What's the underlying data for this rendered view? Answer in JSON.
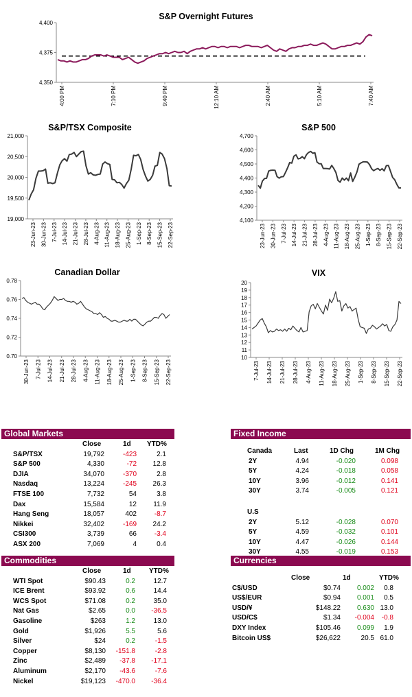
{
  "colors": {
    "accent": "#8b0a50",
    "futures_line": "#8b1a5b",
    "index_line": "#3a3a3a",
    "negative": "#e0001b",
    "positive": "#1a8c1a"
  },
  "chart_data": [
    {
      "id": "futures",
      "type": "line",
      "title": "S&P Overnight Futures",
      "y_ticks": [
        "4,400",
        "4,375",
        "4,350"
      ],
      "ylim": [
        4350,
        4400
      ],
      "x_ticks": [
        "4:00 PM",
        "7:10 PM",
        "9:40 PM",
        "12:10 AM",
        "2:40 AM",
        "5:10 AM",
        "7:40 AM"
      ],
      "reference_level": 4372,
      "values": [
        4369,
        4368,
        4368,
        4367,
        4368,
        4367,
        4367,
        4368,
        4369,
        4369,
        4370,
        4372,
        4373,
        4373,
        4373,
        4372,
        4373,
        4372,
        4371,
        4371,
        4371,
        4369,
        4370,
        4371,
        4369,
        4367,
        4366,
        4367,
        4368,
        4370,
        4371,
        4372,
        4373,
        4374,
        4374,
        4375,
        4374,
        4375,
        4376,
        4375,
        4375,
        4376,
        4374,
        4376,
        4377,
        4378,
        4378,
        4379,
        4378,
        4379,
        4380,
        4380,
        4379,
        4380,
        4380,
        4379,
        4380,
        4380,
        4380,
        4379,
        4380,
        4381,
        4381,
        4380,
        4380,
        4380,
        4379,
        4380,
        4381,
        4379,
        4377,
        4376,
        4378,
        4377,
        4376,
        4378,
        4379,
        4379,
        4380,
        4380,
        4381,
        4381,
        4382,
        4381,
        4381,
        4382,
        4383,
        4382,
        4380,
        4378,
        4378,
        4379,
        4380,
        4380,
        4381,
        4381,
        4382,
        4383,
        4382,
        4384,
        4388,
        4390,
        4389
      ]
    },
    {
      "id": "tsx",
      "type": "line",
      "title": "S&P/TSX Composite",
      "y_ticks": [
        "21,000",
        "20,500",
        "20,000",
        "19,500",
        "19,000"
      ],
      "ylim": [
        19000,
        21000
      ],
      "x_ticks": [
        "23-Jun-23",
        "30-Jun-23",
        "7-Jul-23",
        "14-Jul-23",
        "21-Jul-23",
        "28-Jul-23",
        "4-Aug-23",
        "11-Aug-23",
        "18-Aug-23",
        "25-Aug-23",
        "1-Sep-23",
        "8-Sep-23",
        "15-Sep-23",
        "22-Sep-23"
      ],
      "values": [
        19450,
        19600,
        19700,
        19980,
        20150,
        20150,
        20160,
        20200,
        19860,
        19870,
        19850,
        19870,
        20100,
        20300,
        20400,
        20450,
        20390,
        20550,
        20560,
        20600,
        20500,
        20560,
        20620,
        20630,
        20280,
        20080,
        20110,
        20060,
        20050,
        20070,
        20080,
        20320,
        20370,
        20330,
        20310,
        19950,
        19940,
        19870,
        19880,
        19830,
        19740,
        19850,
        19930,
        20200,
        20530,
        20520,
        20550,
        20430,
        20190,
        20030,
        19910,
        19950,
        20050,
        20270,
        20290,
        20600,
        20560,
        20450,
        20210,
        19800,
        19790
      ]
    },
    {
      "id": "spx",
      "type": "line",
      "title": "S&P 500",
      "y_ticks": [
        "4,700",
        "4,600",
        "4,500",
        "4,400",
        "4,300",
        "4,200",
        "4,100"
      ],
      "ylim": [
        4100,
        4700
      ],
      "x_ticks": [
        "23-Jun-23",
        "30-Jun-23",
        "7-Jul-23",
        "14-Jul-23",
        "21-Jul-23",
        "28-Jul-23",
        "4-Aug-23",
        "11-Aug-23",
        "18-Aug-23",
        "25-Aug-23",
        "1-Sep-23",
        "8-Sep-23",
        "15-Sep-23",
        "22-Sep-23"
      ],
      "values": [
        4348,
        4328,
        4378,
        4396,
        4398,
        4450,
        4455,
        4456,
        4455,
        4410,
        4399,
        4409,
        4410,
        4440,
        4472,
        4510,
        4506,
        4555,
        4565,
        4536,
        4540,
        4552,
        4537,
        4567,
        4582,
        4589,
        4576,
        4580,
        4514,
        4502,
        4501,
        4468,
        4468,
        4467,
        4464,
        4490,
        4468,
        4439,
        4383,
        4370,
        4400,
        4385,
        4400,
        4381,
        4436,
        4376,
        4406,
        4443,
        4498,
        4508,
        4515,
        4515,
        4513,
        4496,
        4466,
        4452,
        4462,
        4468,
        4455,
        4466,
        4451,
        4488,
        4490,
        4448,
        4404,
        4388,
        4355,
        4330,
        4330
      ]
    },
    {
      "id": "cad",
      "type": "line",
      "title": "Canadian Dollar",
      "y_ticks": [
        "0.78",
        "0.76",
        "0.74",
        "0.72",
        "0.70"
      ],
      "ylim": [
        0.7,
        0.78
      ],
      "x_ticks": [
        "30-Jun-23",
        "7-Jul-23",
        "14-Jul-23",
        "21-Jul-23",
        "28-Jul-23",
        "4-Aug-23",
        "11-Aug-23",
        "18-Aug-23",
        "25-Aug-23",
        "1-Sep-23",
        "8-Sep-23",
        "15-Sep-23",
        "22-Sep-23"
      ],
      "values": [
        0.761,
        0.762,
        0.759,
        0.757,
        0.756,
        0.755,
        0.756,
        0.757,
        0.755,
        0.755,
        0.753,
        0.75,
        0.749,
        0.752,
        0.754,
        0.756,
        0.759,
        0.763,
        0.761,
        0.759,
        0.76,
        0.76,
        0.761,
        0.759,
        0.758,
        0.758,
        0.757,
        0.758,
        0.757,
        0.755,
        0.756,
        0.758,
        0.755,
        0.752,
        0.75,
        0.749,
        0.748,
        0.747,
        0.745,
        0.745,
        0.744,
        0.746,
        0.744,
        0.741,
        0.742,
        0.74,
        0.739,
        0.737,
        0.737,
        0.738,
        0.737,
        0.736,
        0.736,
        0.737,
        0.738,
        0.737,
        0.737,
        0.739,
        0.737,
        0.739,
        0.739,
        0.737,
        0.735,
        0.733,
        0.732,
        0.734,
        0.736,
        0.737,
        0.737,
        0.739,
        0.741,
        0.741,
        0.74,
        0.743,
        0.745,
        0.744,
        0.74,
        0.742,
        0.744
      ]
    },
    {
      "id": "vix",
      "type": "line",
      "title": "VIX",
      "y_ticks": [
        "20",
        "19",
        "18",
        "17",
        "16",
        "15",
        "14",
        "13",
        "12",
        "11",
        "10"
      ],
      "ylim": [
        10,
        20
      ],
      "x_ticks": [
        "7-Jul-23",
        "14-Jul-23",
        "21-Jul-23",
        "28-Jul-23",
        "4-Aug-23",
        "11-Aug-23",
        "18-Aug-23",
        "25-Aug-23",
        "1-Sep-23",
        "8-Sep-23",
        "15-Sep-23",
        "22-Sep-23"
      ],
      "values": [
        13.8,
        14.0,
        14.2,
        14.6,
        15.0,
        15.2,
        14.6,
        14.1,
        13.3,
        13.6,
        13.4,
        13.5,
        13.8,
        13.6,
        13.7,
        13.5,
        13.8,
        13.5,
        13.9,
        13.7,
        14.2,
        13.9,
        13.6,
        13.4,
        14.0,
        13.4,
        13.5,
        13.6,
        16.1,
        16.9,
        17.1,
        16.5,
        17.2,
        16.7,
        16.2,
        15.8,
        17.0,
        16.3,
        17.8,
        17.3,
        17.9,
        18.8,
        17.5,
        17.6,
        16.2,
        16.9,
        17.2,
        16.6,
        16.8,
        16.2,
        16.4,
        16.6,
        15.1,
        14.1,
        14.0,
        13.9,
        13.2,
        13.8,
        13.9,
        14.3,
        14.1,
        13.8,
        14.0,
        14.2,
        14.5,
        14.2,
        14.4,
        13.6,
        13.5,
        14.1,
        14.4,
        15.0,
        17.5,
        17.2
      ]
    }
  ],
  "global_markets": {
    "title": "Global Markets",
    "headers": [
      "Close",
      "1d",
      "YTD%"
    ],
    "rows": [
      {
        "name": "S&P/TSX",
        "close": "19,792",
        "d1": "-423",
        "ytd": "2.1",
        "d1c": "neg",
        "ytdc": "blk"
      },
      {
        "name": "S&P 500",
        "close": "4,330",
        "d1": "-72",
        "ytd": "12.8",
        "d1c": "neg",
        "ytdc": "blk"
      },
      {
        "name": "DJIA",
        "close": "34,070",
        "d1": "-370",
        "ytd": "2.8",
        "d1c": "neg",
        "ytdc": "blk"
      },
      {
        "name": "Nasdaq",
        "close": "13,224",
        "d1": "-245",
        "ytd": "26.3",
        "d1c": "neg",
        "ytdc": "blk"
      },
      {
        "name": "FTSE 100",
        "close": "7,732",
        "d1": "54",
        "ytd": "3.8",
        "d1c": "blk",
        "ytdc": "blk"
      },
      {
        "name": "Dax",
        "close": "15,584",
        "d1": "12",
        "ytd": "11.9",
        "d1c": "blk",
        "ytdc": "blk"
      },
      {
        "name": "Hang Seng",
        "close": "18,057",
        "d1": "402",
        "ytd": "-8.7",
        "d1c": "blk",
        "ytdc": "neg"
      },
      {
        "name": "Nikkei",
        "close": "32,402",
        "d1": "-169",
        "ytd": "24.2",
        "d1c": "neg",
        "ytdc": "blk"
      },
      {
        "name": "CSI300",
        "close": "3,739",
        "d1": "66",
        "ytd": "-3.4",
        "d1c": "blk",
        "ytdc": "neg"
      },
      {
        "name": "ASX 200",
        "close": "7,069",
        "d1": "4",
        "ytd": "0.4",
        "d1c": "blk",
        "ytdc": "blk"
      }
    ]
  },
  "fixed_income": {
    "title": "Fixed Income",
    "headers": [
      "Last",
      "1D Chg",
      "1M Chg"
    ],
    "canada_label": "Canada",
    "us_label": "U.S",
    "canada": [
      {
        "term": "2Y",
        "last": "4.94",
        "d1": "-0.020",
        "m1": "0.098"
      },
      {
        "term": "5Y",
        "last": "4.24",
        "d1": "-0.018",
        "m1": "0.058"
      },
      {
        "term": "10Y",
        "last": "3.96",
        "d1": "-0.012",
        "m1": "0.141"
      },
      {
        "term": "30Y",
        "last": "3.74",
        "d1": "-0.005",
        "m1": "0.121"
      }
    ],
    "us": [
      {
        "term": "2Y",
        "last": "5.12",
        "d1": "-0.028",
        "m1": "0.070"
      },
      {
        "term": "5Y",
        "last": "4.59",
        "d1": "-0.032",
        "m1": "0.101"
      },
      {
        "term": "10Y",
        "last": "4.47",
        "d1": "-0.026",
        "m1": "0.144"
      },
      {
        "term": "30Y",
        "last": "4.55",
        "d1": "-0.019",
        "m1": "0.153"
      }
    ]
  },
  "commodities": {
    "title": "Commodities",
    "headers": [
      "Close",
      "1d",
      "YTD%"
    ],
    "rows": [
      {
        "name": "WTI Spot",
        "close": "$90.43",
        "d1": "0.2",
        "ytd": "12.7",
        "d1c": "pos",
        "ytdc": "blk"
      },
      {
        "name": "ICE Brent",
        "close": "$93.92",
        "d1": "0.6",
        "ytd": "14.4",
        "d1c": "pos",
        "ytdc": "blk"
      },
      {
        "name": "WCS Spot",
        "close": "$71.08",
        "d1": "0.2",
        "ytd": "35.0",
        "d1c": "pos",
        "ytdc": "blk"
      },
      {
        "name": "Nat Gas",
        "close": "$2.65",
        "d1": "0.0",
        "ytd": "-36.5",
        "d1c": "pos",
        "ytdc": "neg"
      },
      {
        "name": "Gasoline",
        "close": "$263",
        "d1": "1.2",
        "ytd": "13.0",
        "d1c": "pos",
        "ytdc": "blk"
      },
      {
        "name": "Gold",
        "close": "$1,926",
        "d1": "5.5",
        "ytd": "5.6",
        "d1c": "pos",
        "ytdc": "blk"
      },
      {
        "name": "Silver",
        "close": "$24",
        "d1": "0.2",
        "ytd": "-1.5",
        "d1c": "pos",
        "ytdc": "neg"
      },
      {
        "name": "Copper",
        "close": "$8,130",
        "d1": "-151.8",
        "ytd": "-2.8",
        "d1c": "neg",
        "ytdc": "neg"
      },
      {
        "name": "Zinc",
        "close": "$2,489",
        "d1": "-37.8",
        "ytd": "-17.1",
        "d1c": "neg",
        "ytdc": "neg"
      },
      {
        "name": "Aluminum",
        "close": "$2,170",
        "d1": "-43.6",
        "ytd": "-7.6",
        "d1c": "neg",
        "ytdc": "neg"
      },
      {
        "name": "Nickel",
        "close": "$19,123",
        "d1": "-470.0",
        "ytd": "-36.4",
        "d1c": "neg",
        "ytdc": "neg"
      }
    ]
  },
  "currencies": {
    "title": "Currencies",
    "headers": [
      "Close",
      "1d",
      "YTD%"
    ],
    "rows": [
      {
        "name": "C$/USD",
        "close": "$0.74",
        "d1": "0.002",
        "ytd": "0.8",
        "d1c": "pos",
        "ytdc": "blk"
      },
      {
        "name": "US$/EUR",
        "close": "$0.94",
        "d1": "0.001",
        "ytd": "0.5",
        "d1c": "pos",
        "ytdc": "blk"
      },
      {
        "name": "USD/¥",
        "close": "$148.22",
        "d1": "0.630",
        "ytd": "13.0",
        "d1c": "pos",
        "ytdc": "blk"
      },
      {
        "name": "USD/C$",
        "close": "$1.34",
        "d1": "-0.004",
        "ytd": "-0.8",
        "d1c": "neg",
        "ytdc": "neg"
      },
      {
        "name": "DXY Index",
        "close": "$105.46",
        "d1": "0.099",
        "ytd": "1.9",
        "d1c": "pos",
        "ytdc": "blk"
      },
      {
        "name": "Bitcoin US$",
        "close": "$26,622",
        "d1": "20.5",
        "ytd": "61.0",
        "d1c": "blk",
        "ytdc": "blk"
      }
    ]
  }
}
